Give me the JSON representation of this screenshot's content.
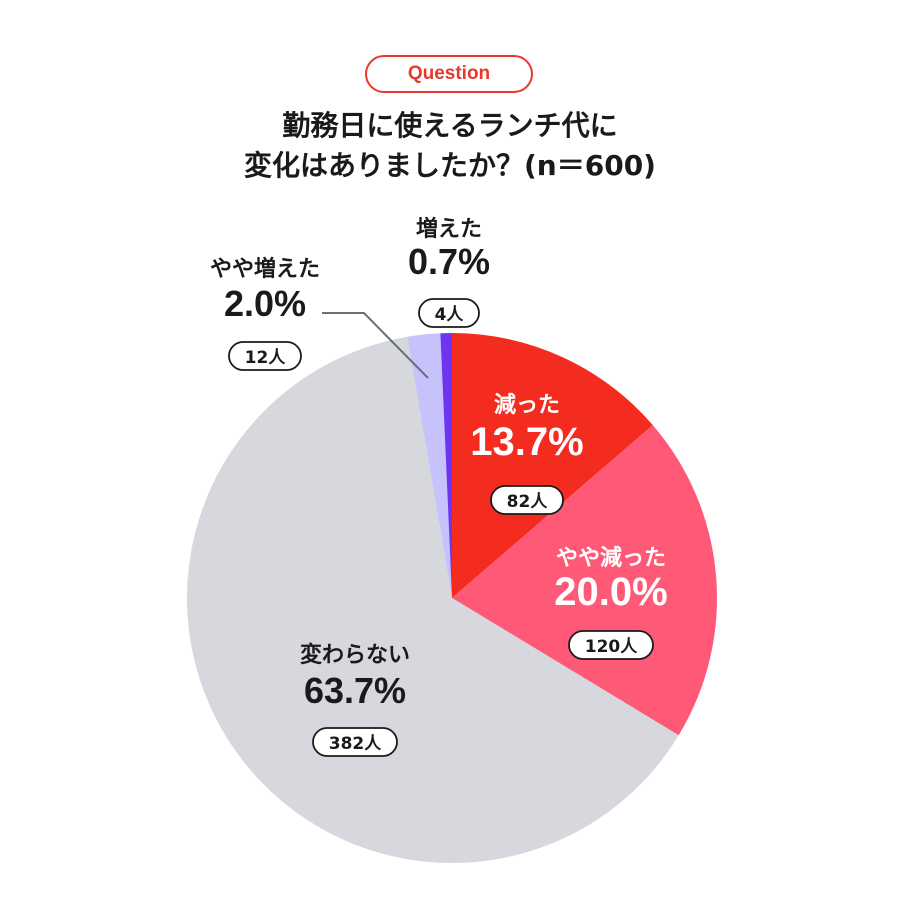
{
  "header": {
    "badge": "Question",
    "title_line1": "勤務日に使えるランチ代に",
    "title_line2": "変化はありましたか？(n＝600)"
  },
  "chart_data": {
    "type": "pie",
    "title": "勤務日に使えるランチ代に変化はありましたか？(n＝600)",
    "slices": [
      {
        "label": "減った",
        "percent": "13.7%",
        "value": 13.7,
        "count": "82人",
        "color": "#f42b1f",
        "text_color": "#ffffff",
        "pill_bg": "#ffffff",
        "pill_text": "#1a1a1a"
      },
      {
        "label": "やや減った",
        "percent": "20.0%",
        "value": 20.0,
        "count": "120人",
        "color": "#fe5977",
        "text_color": "#ffffff",
        "pill_bg": "#ffffff",
        "pill_text": "#1a1a1a"
      },
      {
        "label": "変わらない",
        "percent": "63.7%",
        "value": 63.7,
        "count": "382人",
        "color": "#d6d8dd",
        "text_color": "#1a1a1a",
        "pill_bg": "#ffffff",
        "pill_text": "#1a1a1a"
      },
      {
        "label": "やや増えた",
        "percent": "2.0%",
        "value": 2.0,
        "count": "12人",
        "color": "#c6c2fb",
        "text_color": "#1a1a1a",
        "pill_bg": "#ffffff",
        "pill_text": "#1a1a1a"
      },
      {
        "label": "増えた",
        "percent": "0.7%",
        "value": 0.7,
        "count": "4人",
        "color": "#6e34f0",
        "text_color": "#1a1a1a",
        "pill_bg": "#ffffff",
        "pill_text": "#1a1a1a"
      }
    ]
  }
}
